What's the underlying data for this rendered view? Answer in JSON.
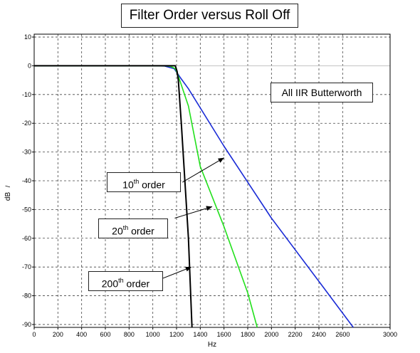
{
  "chart_data": {
    "type": "line",
    "title": "Filter Order versus Roll Off",
    "xlabel": "Hz",
    "ylabel": "dB",
    "ylabel_prefix": "/",
    "xlim": [
      0,
      3000
    ],
    "ylim": [
      -91,
      11
    ],
    "x_ticks": [
      0,
      200,
      400,
      600,
      800,
      1000,
      1200,
      1400,
      1600,
      1800,
      2000,
      2200,
      2400,
      2600,
      3000
    ],
    "y_ticks": [
      10,
      0,
      -10,
      -20,
      -30,
      -40,
      -50,
      -60,
      -70,
      -80,
      -90
    ],
    "grid": true,
    "annotation": "All IIR Butterworth",
    "series": [
      {
        "name": "10th order",
        "order_label": {
          "prefix": "10",
          "sup": "th",
          "suffix": " order"
        },
        "color": "#1a2bd6",
        "x": [
          0,
          1000,
          1100,
          1180,
          1230,
          1300,
          1600,
          2000,
          2400,
          2690
        ],
        "y": [
          0,
          0,
          -0.1,
          -1,
          -4,
          -8,
          -28,
          -53,
          -75,
          -91
        ]
      },
      {
        "name": "20th order",
        "order_label": {
          "prefix": "20",
          "sup": "th",
          "suffix": " order"
        },
        "color": "#22e01c",
        "x": [
          0,
          1100,
          1150,
          1190,
          1210,
          1300,
          1400,
          1600,
          1800,
          1880
        ],
        "y": [
          0,
          0,
          -0.2,
          -1,
          -3,
          -14,
          -35,
          -56,
          -79,
          -91
        ]
      },
      {
        "name": "200th order",
        "order_label": {
          "prefix": "200",
          "sup": "th",
          "suffix": " order"
        },
        "color": "#000000",
        "x": [
          0,
          1150,
          1190,
          1205,
          1215,
          1240,
          1300,
          1330
        ],
        "y": [
          0,
          0,
          0,
          -2,
          -5,
          -20,
          -60,
          -91
        ]
      }
    ],
    "arrows": [
      {
        "series": "10th order",
        "from": [
          1250,
          -40.5
        ],
        "to": [
          1600,
          -32
        ]
      },
      {
        "series": "20th order",
        "from": [
          1185,
          -53
        ],
        "to": [
          1500,
          -49
        ]
      },
      {
        "series": "200th order",
        "from": [
          1080,
          -74
        ],
        "to": [
          1325,
          -70
        ]
      }
    ]
  }
}
